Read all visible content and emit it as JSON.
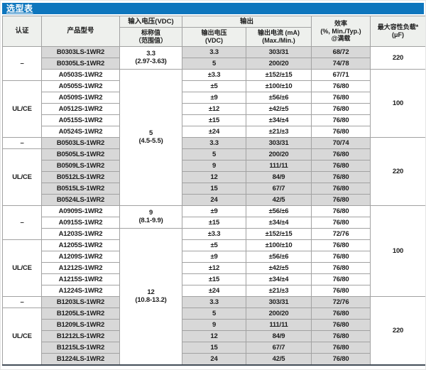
{
  "title": "选型表",
  "colors": {
    "title_bg": "#0e76bd",
    "header_bg": "#eef0ed",
    "row_highlight": "#d8d8d8",
    "border": "#a2a2a2",
    "table_bottom_border": "#434d58",
    "title_text": "#ffffff",
    "text": "#1c1c1c"
  },
  "header": {
    "cert": "认证",
    "model": "产品型号",
    "vin_top": "输入电压(VDC)",
    "vin_sub": [
      "标称值",
      "（范围值）"
    ],
    "output": "输出",
    "vout": [
      "输出电压",
      "(VDC)"
    ],
    "iout": [
      "输出电流 (mA)",
      "(Max./Min.)"
    ],
    "eff": [
      "效率",
      "(%, Min./Typ.)",
      "@满载"
    ],
    "cap": [
      "最大容性负载*",
      "(μF)"
    ]
  },
  "table": {
    "cert_groups": [
      {
        "label": "–",
        "start": 0,
        "span": 3
      },
      {
        "label": "UL/CE",
        "start": 3,
        "span": 5
      },
      {
        "label": "–",
        "start": 8,
        "span": 1
      },
      {
        "label": "UL/CE",
        "start": 9,
        "span": 5
      },
      {
        "label": "–",
        "start": 14,
        "span": 3
      },
      {
        "label": "UL/CE",
        "start": 17,
        "span": 5
      },
      {
        "label": "–",
        "start": 22,
        "span": 1
      },
      {
        "label": "UL/CE",
        "start": 23,
        "span": 5
      }
    ],
    "vin_groups": [
      {
        "nominal": "3.3",
        "range": "(2.97-3.63)",
        "start": 0,
        "span": 2
      },
      {
        "nominal": "5",
        "range": "(4.5-5.5)",
        "start": 2,
        "span": 12
      },
      {
        "nominal": "9",
        "range": "(8.1-9.9)",
        "start": 14,
        "span": 2
      },
      {
        "nominal": "12",
        "range": "(10.8-13.2)",
        "start": 16,
        "span": 12
      }
    ],
    "cap_groups": [
      {
        "value": "220",
        "start": 0,
        "span": 2
      },
      {
        "value": "100",
        "start": 2,
        "span": 6
      },
      {
        "value": "220",
        "start": 8,
        "span": 6
      },
      {
        "value": "100",
        "start": 14,
        "span": 8
      },
      {
        "value": "220",
        "start": 22,
        "span": 6
      }
    ],
    "rows": [
      {
        "model": "B0303LS-1WR2",
        "vout": "3.3",
        "iout": "303/31",
        "eff": "68/72",
        "highlight": true
      },
      {
        "model": "B0305LS-1WR2",
        "vout": "5",
        "iout": "200/20",
        "eff": "74/78",
        "highlight": true
      },
      {
        "model": "A0503S-1WR2",
        "vout": "±3.3",
        "iout": "±152/±15",
        "eff": "67/71",
        "highlight": false
      },
      {
        "model": "A0505S-1WR2",
        "vout": "±5",
        "iout": "±100/±10",
        "eff": "76/80",
        "highlight": false
      },
      {
        "model": "A0509S-1WR2",
        "vout": "±9",
        "iout": "±56/±6",
        "eff": "76/80",
        "highlight": false
      },
      {
        "model": "A0512S-1WR2",
        "vout": "±12",
        "iout": "±42/±5",
        "eff": "76/80",
        "highlight": false
      },
      {
        "model": "A0515S-1WR2",
        "vout": "±15",
        "iout": "±34/±4",
        "eff": "76/80",
        "highlight": false
      },
      {
        "model": "A0524S-1WR2",
        "vout": "±24",
        "iout": "±21/±3",
        "eff": "76/80",
        "highlight": false
      },
      {
        "model": "B0503LS-1WR2",
        "vout": "3.3",
        "iout": "303/31",
        "eff": "70/74",
        "highlight": true
      },
      {
        "model": "B0505LS-1WR2",
        "vout": "5",
        "iout": "200/20",
        "eff": "76/80",
        "highlight": true
      },
      {
        "model": "B0509LS-1WR2",
        "vout": "9",
        "iout": "111/11",
        "eff": "76/80",
        "highlight": true
      },
      {
        "model": "B0512LS-1WR2",
        "vout": "12",
        "iout": "84/9",
        "eff": "76/80",
        "highlight": true
      },
      {
        "model": "B0515LS-1WR2",
        "vout": "15",
        "iout": "67/7",
        "eff": "76/80",
        "highlight": true
      },
      {
        "model": "B0524LS-1WR2",
        "vout": "24",
        "iout": "42/5",
        "eff": "76/80",
        "highlight": true
      },
      {
        "model": "A0909S-1WR2",
        "vout": "±9",
        "iout": "±56/±6",
        "eff": "76/80",
        "highlight": false
      },
      {
        "model": "A0915S-1WR2",
        "vout": "±15",
        "iout": "±34/±4",
        "eff": "76/80",
        "highlight": false
      },
      {
        "model": "A1203S-1WR2",
        "vout": "±3.3",
        "iout": "±152/±15",
        "eff": "72/76",
        "highlight": false
      },
      {
        "model": "A1205S-1WR2",
        "vout": "±5",
        "iout": "±100/±10",
        "eff": "76/80",
        "highlight": false
      },
      {
        "model": "A1209S-1WR2",
        "vout": "±9",
        "iout": "±56/±6",
        "eff": "76/80",
        "highlight": false
      },
      {
        "model": "A1212S-1WR2",
        "vout": "±12",
        "iout": "±42/±5",
        "eff": "76/80",
        "highlight": false
      },
      {
        "model": "A1215S-1WR2",
        "vout": "±15",
        "iout": "±34/±4",
        "eff": "76/80",
        "highlight": false
      },
      {
        "model": "A1224S-1WR2",
        "vout": "±24",
        "iout": "±21/±3",
        "eff": "76/80",
        "highlight": false
      },
      {
        "model": "B1203LS-1WR2",
        "vout": "3.3",
        "iout": "303/31",
        "eff": "72/76",
        "highlight": true
      },
      {
        "model": "B1205LS-1WR2",
        "vout": "5",
        "iout": "200/20",
        "eff": "76/80",
        "highlight": true
      },
      {
        "model": "B1209LS-1WR2",
        "vout": "9",
        "iout": "111/11",
        "eff": "76/80",
        "highlight": true
      },
      {
        "model": "B1212LS-1WR2",
        "vout": "12",
        "iout": "84/9",
        "eff": "76/80",
        "highlight": true
      },
      {
        "model": "B1215LS-1WR2",
        "vout": "15",
        "iout": "67/7",
        "eff": "76/80",
        "highlight": true
      },
      {
        "model": "B1224LS-1WR2",
        "vout": "24",
        "iout": "42/5",
        "eff": "76/80",
        "highlight": true
      }
    ]
  }
}
